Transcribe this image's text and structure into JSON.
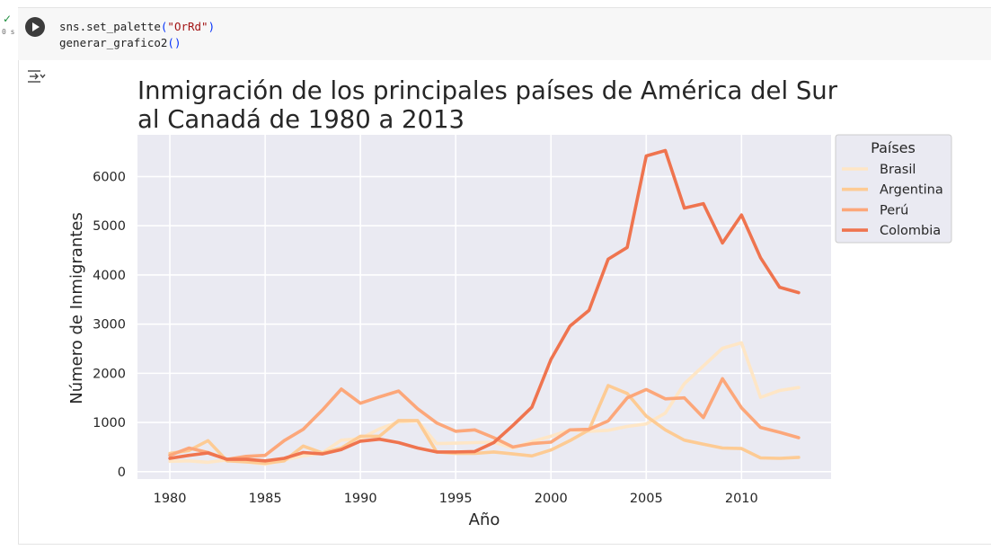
{
  "status": {
    "check": "✓",
    "time": "0 s"
  },
  "code": {
    "line1": {
      "fn": "sns.set_palette",
      "open": "(",
      "arg": "\"OrRd\"",
      "close": ")"
    },
    "line2": {
      "fn": "generar_grafico2",
      "parens": "()"
    }
  },
  "icons": {
    "run": "play-icon",
    "output": "output-toggle-icon"
  },
  "chart_data": {
    "type": "line",
    "title": "Inmigración de los principales países de América del Sur\nal Canadá de 1980 a 2013",
    "xlabel": "Año",
    "ylabel": "Número de Inmigrantes",
    "xlim": [
      1978.3,
      2014.7
    ],
    "ylim": [
      -150,
      6850
    ],
    "xticks": [
      1980,
      1985,
      1990,
      1995,
      2000,
      2005,
      2010
    ],
    "yticks": [
      0,
      1000,
      2000,
      3000,
      4000,
      5000,
      6000
    ],
    "grid": true,
    "legend": {
      "title": "Países",
      "position": "outside-top-right"
    },
    "x": [
      1980,
      1981,
      1982,
      1983,
      1984,
      1985,
      1986,
      1987,
      1988,
      1989,
      1990,
      1991,
      1992,
      1993,
      1994,
      1995,
      1996,
      1997,
      1998,
      1999,
      2000,
      2001,
      2002,
      2003,
      2004,
      2005,
      2006,
      2007,
      2008,
      2009,
      2010,
      2011,
      2012,
      2013
    ],
    "series": [
      {
        "name": "Brasil",
        "color": "#fee6c6",
        "values": [
          210,
          220,
          190,
          240,
          200,
          150,
          240,
          320,
          380,
          640,
          670,
          870,
          1010,
          1030,
          570,
          580,
          590,
          600,
          480,
          610,
          720,
          850,
          820,
          840,
          920,
          970,
          1190,
          1790,
          2150,
          2510,
          2620,
          1510,
          1650,
          1710
        ]
      },
      {
        "name": "Argentina",
        "color": "#fdcb94",
        "values": [
          370,
          430,
          630,
          220,
          200,
          170,
          220,
          520,
          380,
          480,
          720,
          720,
          1040,
          1040,
          400,
          370,
          370,
          400,
          360,
          320,
          440,
          630,
          850,
          1750,
          1590,
          1130,
          850,
          640,
          560,
          480,
          470,
          280,
          270,
          290
        ]
      },
      {
        "name": "Perú",
        "color": "#fca77a",
        "values": [
          330,
          480,
          390,
          250,
          310,
          330,
          630,
          860,
          1250,
          1680,
          1390,
          1520,
          1640,
          1280,
          990,
          820,
          850,
          690,
          500,
          570,
          600,
          850,
          860,
          1030,
          1500,
          1670,
          1480,
          1500,
          1100,
          1890,
          1300,
          900,
          800,
          690
        ]
      },
      {
        "name": "Colombia",
        "color": "#ef744f",
        "values": [
          270,
          330,
          380,
          250,
          250,
          220,
          270,
          390,
          360,
          450,
          620,
          660,
          590,
          480,
          400,
          400,
          410,
          590,
          940,
          1310,
          2280,
          2960,
          3280,
          4320,
          4560,
          6420,
          6530,
          5360,
          5450,
          4650,
          5220,
          4350,
          3750,
          3640
        ]
      }
    ]
  }
}
